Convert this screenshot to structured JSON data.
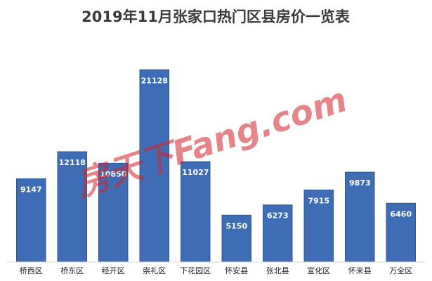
{
  "chart_data": {
    "type": "bar",
    "title": "2019年11月张家口热门区县房价一览表",
    "categories": [
      "桥西区",
      "桥东区",
      "经开区",
      "崇礼区",
      "下花园区",
      "怀安县",
      "张北县",
      "宣化区",
      "怀来县",
      "万全区"
    ],
    "values": [
      9147,
      12118,
      10850,
      21128,
      11027,
      5150,
      6273,
      7915,
      9873,
      6460
    ],
    "ylim": [
      0,
      23000
    ],
    "grid": false,
    "legend": "none",
    "bar_color": "#3f6db5",
    "label_color": "#ffffff"
  },
  "watermark": {
    "text": "房天下Fang.com",
    "color": "#d2232a"
  }
}
